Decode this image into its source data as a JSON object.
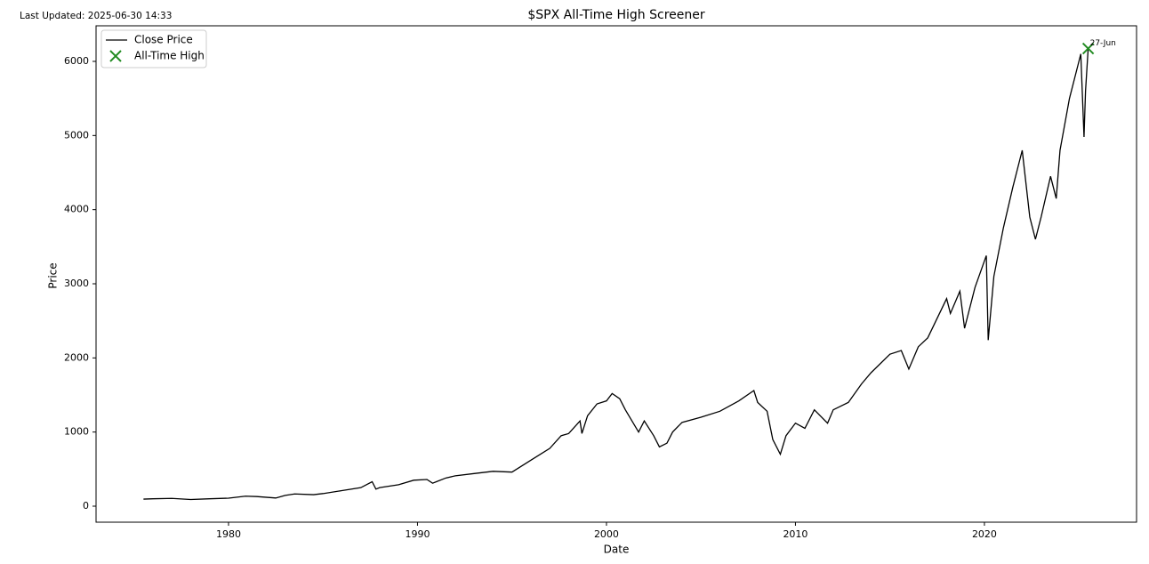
{
  "last_updated": "Last Updated: 2025-06-30 14:33",
  "chart_data": {
    "type": "line",
    "title": "$SPX All-Time High Screener",
    "xlabel": "Date",
    "ylabel": "Price",
    "x": [
      1975.5,
      1976,
      1977,
      1978,
      1979,
      1980,
      1980.9,
      1981.5,
      1982.5,
      1983,
      1983.5,
      1984.5,
      1985,
      1986,
      1987,
      1987.6,
      1987.8,
      1988,
      1989,
      1989.8,
      1990.5,
      1990.8,
      1991,
      1991.5,
      1992,
      1993,
      1994,
      1995,
      1996,
      1997,
      1997.6,
      1998,
      1998.6,
      1998.7,
      1999,
      1999.5,
      2000,
      2000.3,
      2000.7,
      2001,
      2001.7,
      2002,
      2002.5,
      2002.8,
      2003.2,
      2003.5,
      2004,
      2005,
      2006,
      2007,
      2007.8,
      2008,
      2008.5,
      2008.8,
      2009.2,
      2009.5,
      2010,
      2010.5,
      2011,
      2011.7,
      2012,
      2012.8,
      2013.5,
      2014,
      2015,
      2015.6,
      2016,
      2016.5,
      2017,
      2018,
      2018.2,
      2018.7,
      2018.95,
      2019.5,
      2020.1,
      2020.2,
      2020.5,
      2021,
      2021.5,
      2022,
      2022.4,
      2022.7,
      2023,
      2023.5,
      2023.8,
      2024,
      2024.5,
      2025,
      2025.1,
      2025.27,
      2025.35,
      2025.49
    ],
    "series": [
      {
        "name": "Close Price",
        "color": "#000000",
        "values": [
          95,
          100,
          105,
          90,
          100,
          108,
          135,
          130,
          110,
          145,
          165,
          155,
          170,
          210,
          250,
          330,
          230,
          250,
          290,
          350,
          360,
          310,
          330,
          380,
          410,
          440,
          470,
          460,
          620,
          780,
          950,
          980,
          1150,
          980,
          1220,
          1380,
          1420,
          1520,
          1450,
          1300,
          1000,
          1150,
          950,
          800,
          850,
          1000,
          1130,
          1200,
          1280,
          1420,
          1560,
          1400,
          1280,
          900,
          700,
          950,
          1120,
          1050,
          1300,
          1120,
          1300,
          1400,
          1650,
          1800,
          2050,
          2100,
          1850,
          2150,
          2270,
          2800,
          2600,
          2900,
          2400,
          2950,
          3380,
          2240,
          3100,
          3750,
          4300,
          4800,
          3900,
          3600,
          3900,
          4450,
          4150,
          4800,
          5500,
          6000,
          6100,
          4980,
          5600,
          6173
        ]
      }
    ],
    "highlight": {
      "name": "All-Time High",
      "color": "#228b22",
      "x": [
        2025.49
      ],
      "values": [
        6173
      ],
      "label": "27-Jun"
    },
    "xlim": [
      1972.99,
      2028.05
    ],
    "xticks": [
      1980,
      1990,
      2000,
      2010,
      2020
    ],
    "ylim": [
      -216,
      6480
    ],
    "yticks": [
      0,
      1000,
      2000,
      3000,
      4000,
      5000,
      6000
    ],
    "grid": false,
    "legend": "upper-left"
  }
}
